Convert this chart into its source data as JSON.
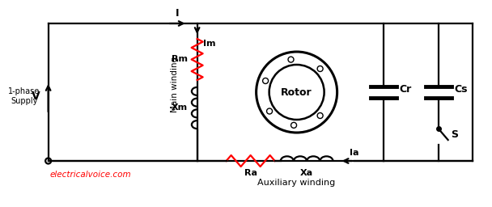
{
  "bg_color": "#ffffff",
  "line_color": "#000000",
  "red_color": "#ff0000",
  "text_color": "#000000",
  "red_text_color": "#ff0000",
  "watermark": "electricalvoice.com",
  "labels": {
    "supply": "1-phase\nSupply",
    "V": "V",
    "I": "I",
    "Im": "Im",
    "Ia": "Ia",
    "Rm": "Rm",
    "Xm": "Xm",
    "Ra": "Ra",
    "Xa": "Xa",
    "Cr": "Cr",
    "Cs": "Cs",
    "S": "S",
    "Rotor": "Rotor",
    "main_winding": "Main winding",
    "aux_winding": "Auxiliary winding"
  }
}
